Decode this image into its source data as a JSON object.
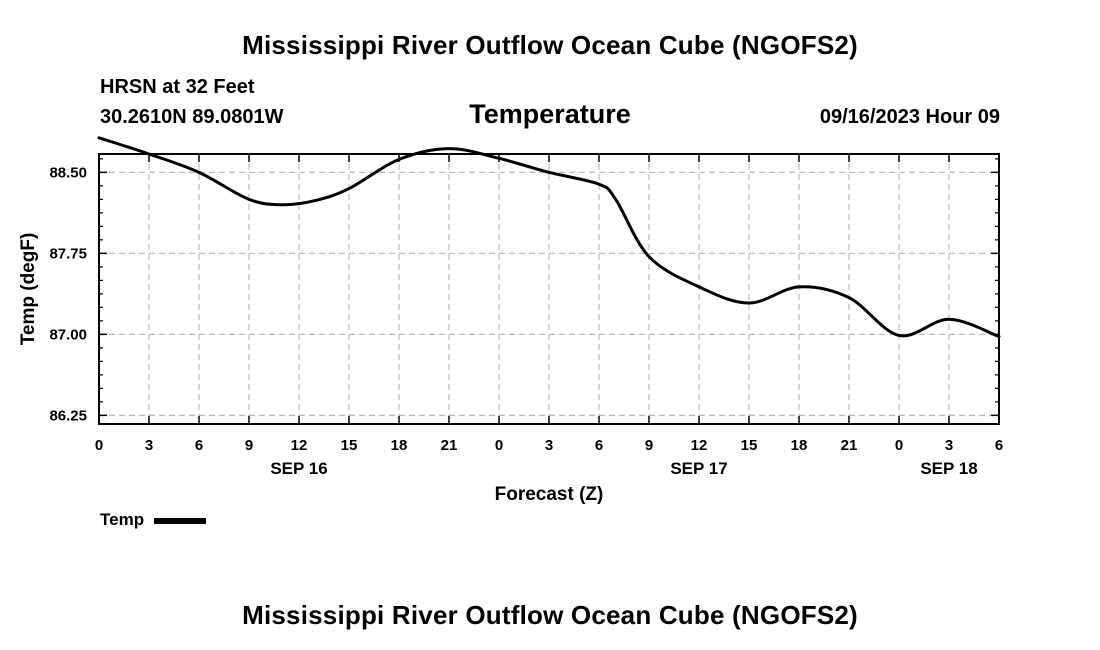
{
  "header": {
    "title": "Mississippi River Outflow Ocean Cube (NGOFS2)",
    "station": "HRSN at 32 Feet",
    "coords": "30.2610N  89.0801W",
    "variable": "Temperature",
    "datetime": "09/16/2023 Hour 09"
  },
  "footer": {
    "title": "Mississippi River Outflow Ocean Cube (NGOFS2)"
  },
  "legend": {
    "label": "Temp",
    "color": "#000000"
  },
  "chart_data": {
    "type": "line",
    "title": "Temperature",
    "xlabel": "Forecast (Z)",
    "ylabel": "Temp (degF)",
    "xlim": [
      0,
      54
    ],
    "ylim": [
      86.17,
      88.67
    ],
    "grid": true,
    "y_ticks": [
      86.25,
      87.0,
      87.75,
      88.5
    ],
    "y_tick_labels": [
      "86.25",
      "87.00",
      "87.75",
      "88.50"
    ],
    "x_ticks": [
      0,
      3,
      6,
      9,
      12,
      15,
      18,
      21,
      24,
      27,
      30,
      33,
      36,
      39,
      42,
      45,
      48,
      51,
      54
    ],
    "x_tick_labels": [
      "0",
      "3",
      "6",
      "9",
      "12",
      "15",
      "18",
      "21",
      "0",
      "3",
      "6",
      "9",
      "12",
      "15",
      "18",
      "21",
      "0",
      "3",
      "6"
    ],
    "date_labels": [
      {
        "hour": 12,
        "label": "SEP 16"
      },
      {
        "hour": 36,
        "label": "SEP 17"
      },
      {
        "hour": 51,
        "label": "SEP 18"
      }
    ],
    "series": [
      {
        "name": "Temp",
        "color": "#000000",
        "x": [
          0,
          3,
          6,
          9,
          11,
          13,
          15,
          18,
          21,
          24,
          27,
          30,
          31,
          33,
          36,
          39,
          42,
          45,
          48,
          51,
          54
        ],
        "y": [
          88.82,
          88.67,
          88.5,
          88.25,
          88.2,
          88.24,
          88.35,
          88.62,
          88.72,
          88.63,
          88.5,
          88.39,
          88.25,
          87.72,
          87.44,
          87.29,
          87.44,
          87.34,
          86.99,
          87.14,
          86.98
        ]
      }
    ]
  }
}
